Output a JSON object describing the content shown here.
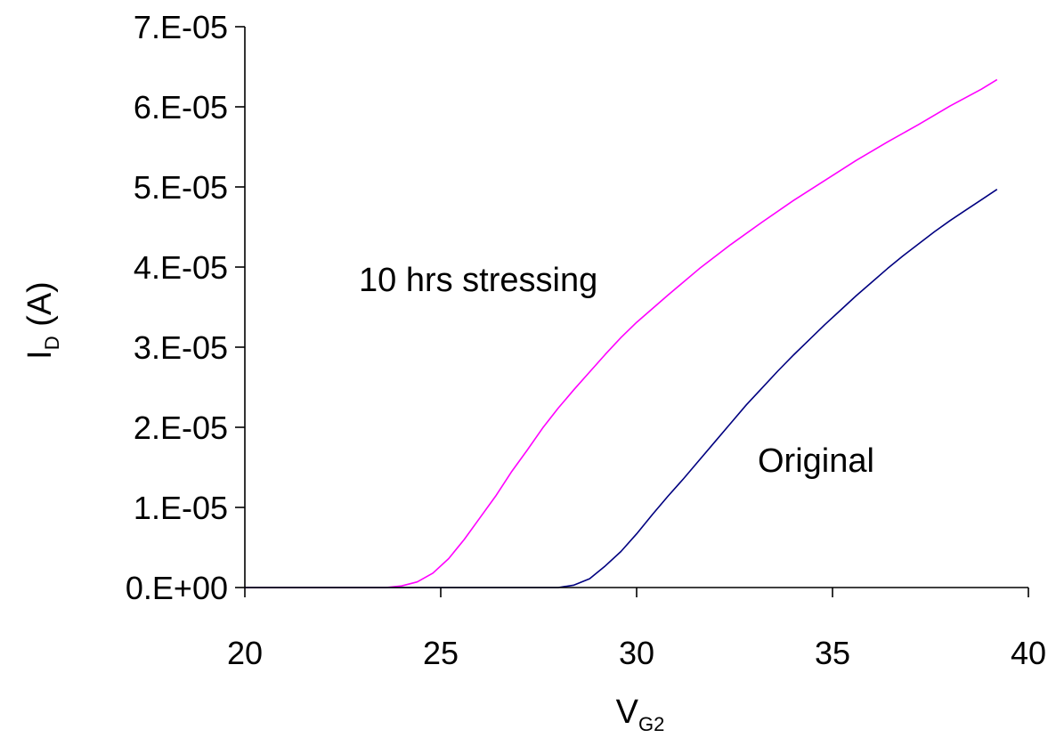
{
  "chart_data": {
    "type": "line",
    "title": "",
    "xlabel": {
      "main": "V",
      "sub": "G2"
    },
    "ylabel": {
      "main": "I",
      "sub": "D",
      "unit": " (A)"
    },
    "xlim": [
      20,
      40
    ],
    "ylim": [
      0,
      7e-05
    ],
    "x_ticks": [
      20,
      25,
      30,
      35,
      40
    ],
    "x_tick_labels": [
      "20",
      "25",
      "30",
      "35",
      "40"
    ],
    "y_ticks": [
      0,
      1e-05,
      2e-05,
      3e-05,
      4e-05,
      5e-05,
      6e-05,
      7e-05
    ],
    "y_tick_labels": [
      "0.E+00",
      "1.E-05",
      "2.E-05",
      "3.E-05",
      "4.E-05",
      "5.E-05",
      "6.E-05",
      "7.E-05"
    ],
    "grid": false,
    "legend": "none",
    "series": [
      {
        "name": "10 hrs stressing",
        "color": "#ff00ff",
        "x": [
          20,
          21,
          22,
          23,
          23.6,
          24,
          24.4,
          24.8,
          25.2,
          25.6,
          26,
          26.4,
          26.8,
          27.2,
          27.6,
          28,
          28.4,
          28.8,
          29.2,
          29.6,
          30,
          30.8,
          31.6,
          32.4,
          33.2,
          34,
          34.8,
          35.6,
          36.4,
          37.2,
          38,
          38.8,
          39.2
        ],
        "y": [
          0,
          0,
          0,
          0,
          0,
          2e-07,
          7e-07,
          1.8e-06,
          3.6e-06,
          6e-06,
          8.7e-06,
          1.14e-05,
          1.44e-05,
          1.71e-05,
          1.99e-05,
          2.24e-05,
          2.47e-05,
          2.69e-05,
          2.91e-05,
          3.12e-05,
          3.31e-05,
          3.65e-05,
          3.98e-05,
          4.28e-05,
          4.56e-05,
          4.83e-05,
          5.08e-05,
          5.33e-05,
          5.56e-05,
          5.78e-05,
          6.01e-05,
          6.22e-05,
          6.34e-05
        ]
      },
      {
        "name": "Original",
        "color": "#000080",
        "x": [
          20,
          22,
          24,
          26,
          27.6,
          28,
          28.4,
          28.8,
          29.2,
          29.6,
          30,
          30.4,
          30.8,
          31.2,
          31.6,
          32,
          32.4,
          32.8,
          33.2,
          33.6,
          34,
          34.4,
          34.8,
          35.2,
          35.6,
          36,
          36.4,
          36.8,
          37.2,
          37.6,
          38,
          38.4,
          38.8,
          39.2
        ],
        "y": [
          0,
          0,
          0,
          0,
          0,
          0,
          3e-07,
          1.1e-06,
          2.7e-06,
          4.5e-06,
          6.7e-06,
          9.1e-06,
          1.14e-05,
          1.36e-05,
          1.59e-05,
          1.82e-05,
          2.05e-05,
          2.28e-05,
          2.49e-05,
          2.7e-05,
          2.9e-05,
          3.09e-05,
          3.28e-05,
          3.46e-05,
          3.64e-05,
          3.81e-05,
          3.98e-05,
          4.14e-05,
          4.29e-05,
          4.44e-05,
          4.58e-05,
          4.71e-05,
          4.84e-05,
          4.97e-05
        ]
      }
    ],
    "annotations": [
      {
        "text": "10 hrs stressing",
        "series": "10 hrs stressing"
      },
      {
        "text": "Original",
        "series": "Original"
      }
    ]
  }
}
